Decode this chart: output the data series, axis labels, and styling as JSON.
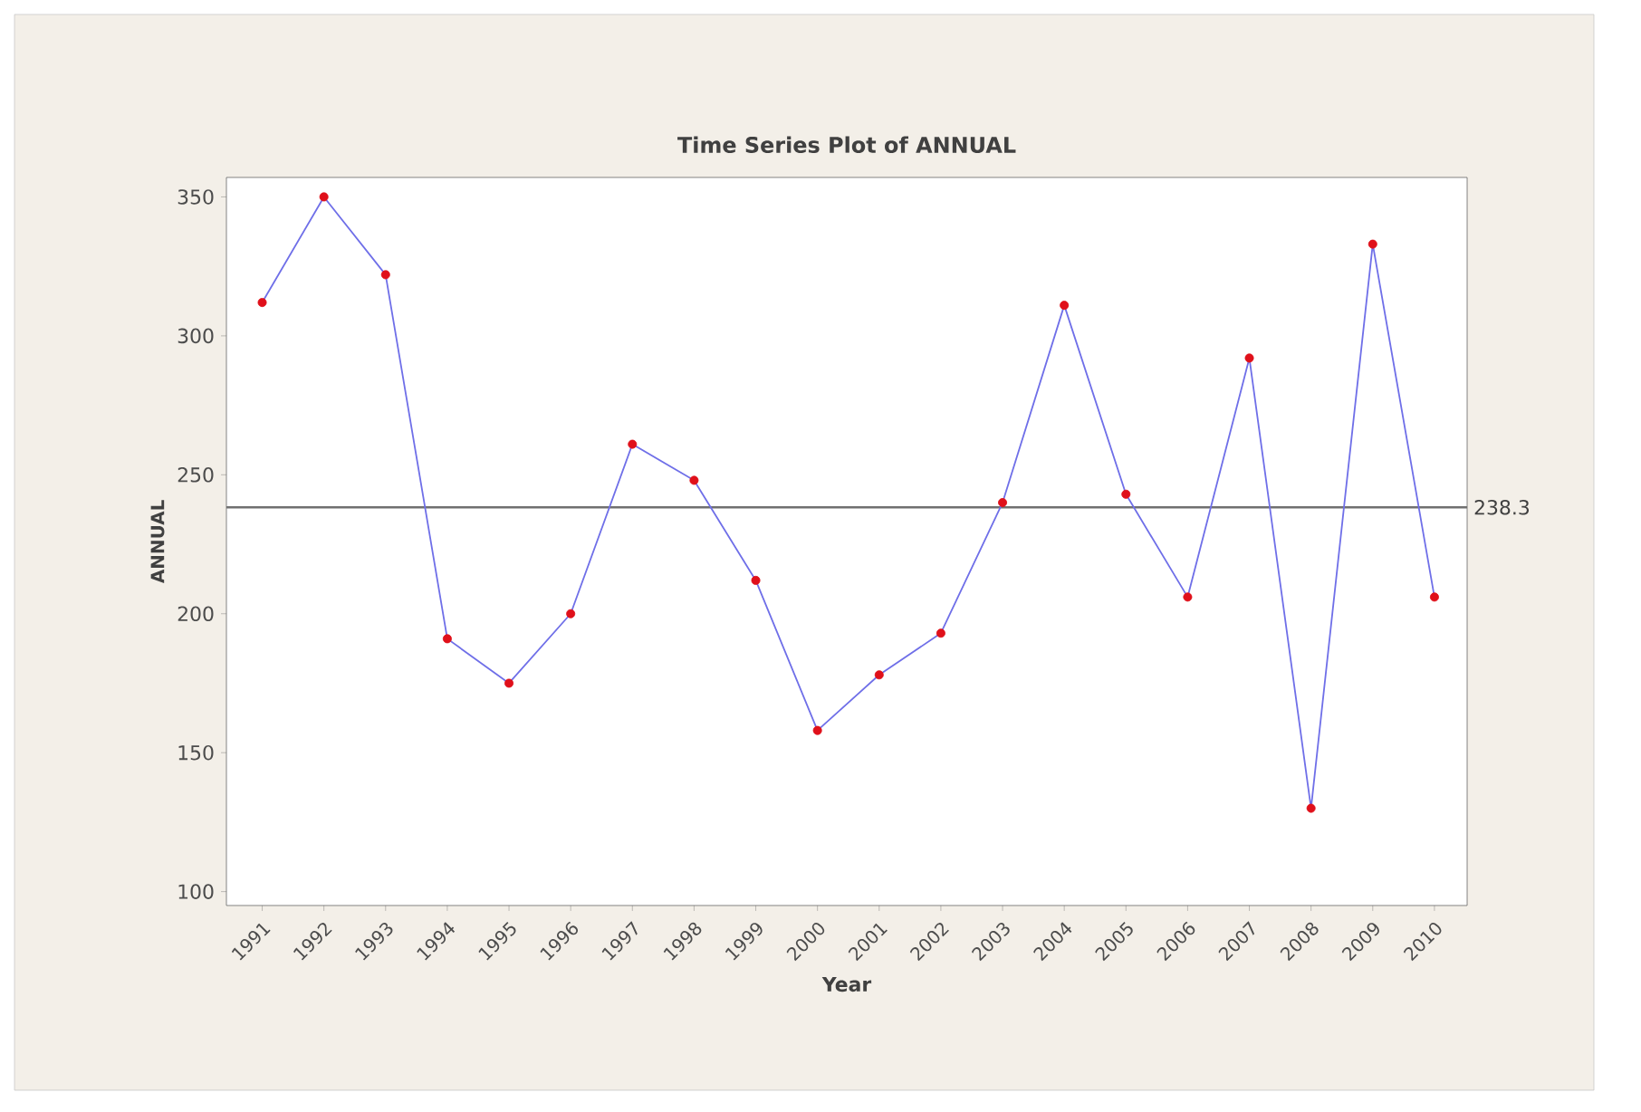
{
  "chart_data": {
    "type": "line",
    "title": "Time Series Plot of ANNUAL",
    "xlabel": "Year",
    "ylabel": "ANNUAL",
    "categories": [
      "1991",
      "1992",
      "1993",
      "1994",
      "1995",
      "1996",
      "1997",
      "1998",
      "1999",
      "2000",
      "2001",
      "2002",
      "2003",
      "2004",
      "2005",
      "2006",
      "2007",
      "2008",
      "2009",
      "2010"
    ],
    "series": [
      {
        "color": "#6f6fe8",
        "colors": [
          "#e0101a",
          "#e0101a",
          "#e0101a",
          "#e0101a",
          "#e0101a",
          "#e0101a",
          "#e0101a",
          "#e0101a",
          "#e0101a",
          "#e0101a",
          "#e0101a",
          "#e0101a",
          "#e0101a",
          "#e0101a",
          "#e0101a",
          "#e0101a",
          "#e0101a",
          "#e0101a",
          "#e0101a",
          "#e0101a"
        ],
        "values": [
          312,
          350,
          322,
          191,
          175,
          200,
          261,
          248,
          212,
          158,
          178,
          193,
          240,
          311,
          243,
          206,
          292,
          130,
          333,
          206
        ]
      }
    ],
    "ylim": [
      95,
      357
    ],
    "yticks": [
      100,
      150,
      200,
      250,
      300,
      350
    ],
    "ref_lines": [
      {
        "axis": "y",
        "value": 238.3,
        "label": "238.3",
        "color": "#707070"
      }
    ],
    "marker": "circle",
    "line_style": "solid",
    "grid": false
  }
}
